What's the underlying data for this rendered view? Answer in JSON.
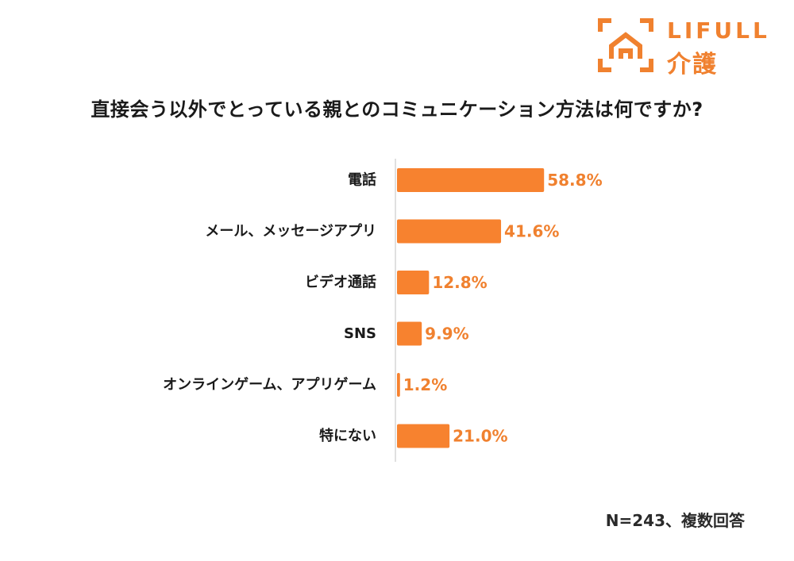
{
  "logo": {
    "brand": "LIFULL",
    "sub": "介護",
    "color": "#F0812F"
  },
  "chart_data": {
    "type": "bar",
    "orientation": "horizontal",
    "title": "直接会う以外でとっている親とのコミュニケーション方法は何ですか?",
    "categories": [
      "電話",
      "メール、メッセージアプリ",
      "ビデオ通話",
      "SNS",
      "オンラインゲーム、アプリゲーム",
      "特にない"
    ],
    "values": [
      58.8,
      41.6,
      12.8,
      9.9,
      1.2,
      21.0
    ],
    "value_labels": [
      "58.8%",
      "41.6%",
      "12.8%",
      "9.9%",
      "1.2%",
      "21.0%"
    ],
    "unit": "%",
    "xlim": [
      0,
      100
    ],
    "grid": false,
    "bar_color": "#F7822F",
    "label_color": "#F0812F",
    "xlabel": "",
    "ylabel": ""
  },
  "note": "N=243、複数回答"
}
